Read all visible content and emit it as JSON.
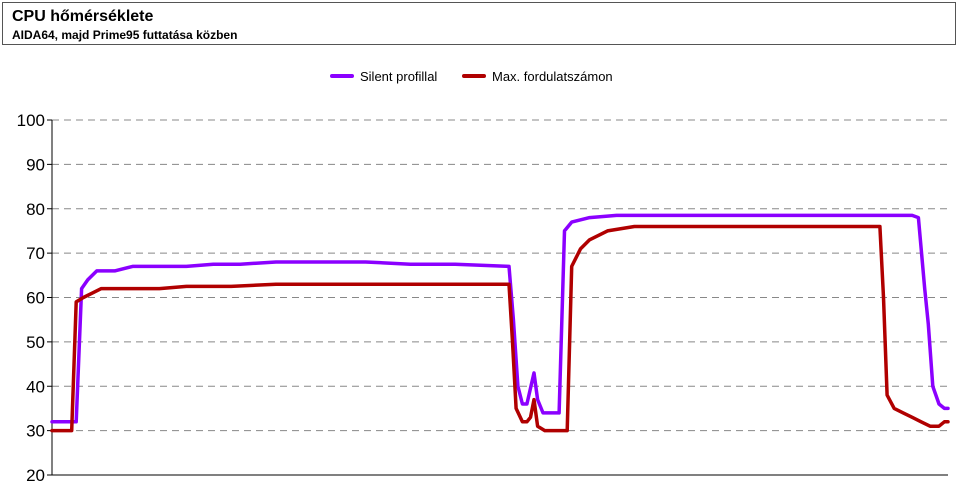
{
  "header": {
    "title": "CPU hőmérséklete",
    "subtitle": "AIDA64, majd Prime95 futtatása közben"
  },
  "chart_data": {
    "type": "line",
    "title": "CPU hőmérséklete",
    "subtitle": "AIDA64, majd Prime95 futtatása közben",
    "xlabel": "",
    "ylabel": "",
    "ylim": [
      20,
      100
    ],
    "yticks": [
      20,
      30,
      40,
      50,
      60,
      70,
      80,
      90,
      100
    ],
    "xlim": [
      0,
      100
    ],
    "grid": "horizontal dashed",
    "legend_position": "top-center",
    "series": [
      {
        "name": "Silent profillal",
        "color": "#8B00FF",
        "points": [
          [
            0,
            32
          ],
          [
            1,
            32
          ],
          [
            2,
            32
          ],
          [
            2.7,
            32
          ],
          [
            3.3,
            62
          ],
          [
            4,
            64
          ],
          [
            5,
            66
          ],
          [
            7,
            66
          ],
          [
            9,
            67
          ],
          [
            12,
            67
          ],
          [
            15,
            67
          ],
          [
            18,
            67.5
          ],
          [
            21,
            67.5
          ],
          [
            25,
            68
          ],
          [
            30,
            68
          ],
          [
            35,
            68
          ],
          [
            40,
            67.5
          ],
          [
            45,
            67.5
          ],
          [
            51,
            67
          ],
          [
            51.5,
            55
          ],
          [
            52,
            40
          ],
          [
            52.5,
            36
          ],
          [
            53,
            36
          ],
          [
            53.8,
            43
          ],
          [
            54.2,
            37
          ],
          [
            54.8,
            34
          ],
          [
            56,
            34
          ],
          [
            56.6,
            34
          ],
          [
            57.2,
            75
          ],
          [
            58,
            77
          ],
          [
            60,
            78
          ],
          [
            63,
            78.5
          ],
          [
            66,
            78.5
          ],
          [
            70,
            78.5
          ],
          [
            75,
            78.5
          ],
          [
            80,
            78.5
          ],
          [
            85,
            78.5
          ],
          [
            88,
            78.5
          ],
          [
            96,
            78.5
          ],
          [
            96.7,
            78
          ],
          [
            97.4,
            62
          ],
          [
            97.8,
            54
          ],
          [
            98.3,
            40
          ],
          [
            99,
            36
          ],
          [
            99.6,
            35
          ],
          [
            100,
            35
          ]
        ]
      },
      {
        "name": "Max. fordulatszámon",
        "color": "#B00000",
        "points": [
          [
            0,
            30
          ],
          [
            1,
            30
          ],
          [
            2,
            30
          ],
          [
            2.2,
            30
          ],
          [
            2.7,
            59
          ],
          [
            3.5,
            60
          ],
          [
            4.5,
            61
          ],
          [
            5.5,
            62
          ],
          [
            8,
            62
          ],
          [
            12,
            62
          ],
          [
            15,
            62.5
          ],
          [
            20,
            62.5
          ],
          [
            25,
            63
          ],
          [
            30,
            63
          ],
          [
            35,
            63
          ],
          [
            40,
            63
          ],
          [
            45,
            63
          ],
          [
            51,
            63
          ],
          [
            51.4,
            50
          ],
          [
            51.8,
            35
          ],
          [
            52.5,
            32
          ],
          [
            53,
            32
          ],
          [
            53.4,
            33
          ],
          [
            53.8,
            37
          ],
          [
            54.2,
            31
          ],
          [
            55,
            30
          ],
          [
            57.5,
            30
          ],
          [
            58,
            67
          ],
          [
            59,
            71
          ],
          [
            60,
            73
          ],
          [
            62,
            75
          ],
          [
            65,
            76
          ],
          [
            70,
            76
          ],
          [
            75,
            76
          ],
          [
            80,
            76
          ],
          [
            85,
            76
          ],
          [
            88,
            76
          ],
          [
            92.4,
            76
          ],
          [
            92.8,
            60
          ],
          [
            93.2,
            38
          ],
          [
            94,
            35
          ],
          [
            95,
            34
          ],
          [
            96,
            33
          ],
          [
            97,
            32
          ],
          [
            98,
            31
          ],
          [
            99,
            31
          ],
          [
            99.6,
            32
          ],
          [
            100,
            32
          ]
        ]
      }
    ]
  },
  "colors": {
    "grid": "#888888",
    "axis": "#000000",
    "silent": "#8B00FF",
    "maxfan": "#B00000"
  }
}
